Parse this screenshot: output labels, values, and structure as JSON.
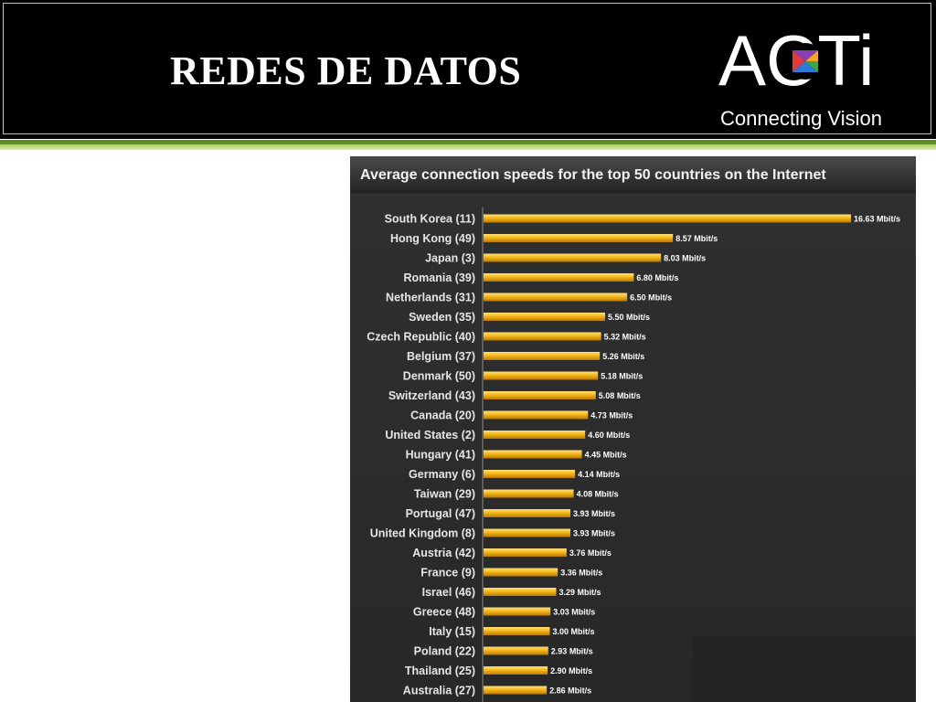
{
  "slide": {
    "title": "REDES DE DATOS",
    "logo_text": "ACTi",
    "tagline": "Connecting Vision"
  },
  "colors": {
    "header_bg": "#000000",
    "accent_green": "#8dc04b",
    "bar_gold": "#f0b414",
    "chart_bg": "#2b2b2b"
  },
  "chart_data": {
    "type": "bar",
    "orientation": "horizontal",
    "title": "Average connection speeds for the top 50 countries on the Internet",
    "categories": [
      "South Korea (11)",
      "Hong Kong (49)",
      "Japan (3)",
      "Romania (39)",
      "Netherlands (31)",
      "Sweden (35)",
      "Czech Republic (40)",
      "Belgium (37)",
      "Denmark (50)",
      "Switzerland (43)",
      "Canada (20)",
      "United States (2)",
      "Hungary (41)",
      "Germany (6)",
      "Taiwan (29)",
      "Portugal (47)",
      "United Kingdom (8)",
      "Austria (42)",
      "France (9)",
      "Israel (46)",
      "Greece (48)",
      "Italy (15)",
      "Poland (22)",
      "Thailand (25)",
      "Australia (27)"
    ],
    "values": [
      16.63,
      8.57,
      8.03,
      6.8,
      6.5,
      5.5,
      5.32,
      5.26,
      5.18,
      5.08,
      4.73,
      4.6,
      4.45,
      4.14,
      4.08,
      3.93,
      3.93,
      3.76,
      3.36,
      3.29,
      3.03,
      3.0,
      2.93,
      2.9,
      2.86
    ],
    "value_labels": [
      "16.63 Mbit/s",
      "8.57 Mbit/s",
      "8.03 Mbit/s",
      "6.80 Mbit/s",
      "6.50 Mbit/s",
      "5.50 Mbit/s",
      "5.32 Mbit/s",
      "5.26 Mbit/s",
      "5.18 Mbit/s",
      "5.08 Mbit/s",
      "4.73 Mbit/s",
      "4.60 Mbit/s",
      "4.45 Mbit/s",
      "4.14 Mbit/s",
      "4.08 Mbit/s",
      "3.93 Mbit/s",
      "3.93 Mbit/s",
      "3.76 Mbit/s",
      "3.36 Mbit/s",
      "3.29 Mbit/s",
      "3.03 Mbit/s",
      "3.00 Mbit/s",
      "2.93 Mbit/s",
      "2.90 Mbit/s",
      "2.86 Mbit/s"
    ],
    "xlim": [
      0,
      16.63
    ],
    "grid": false,
    "legend": "none"
  }
}
